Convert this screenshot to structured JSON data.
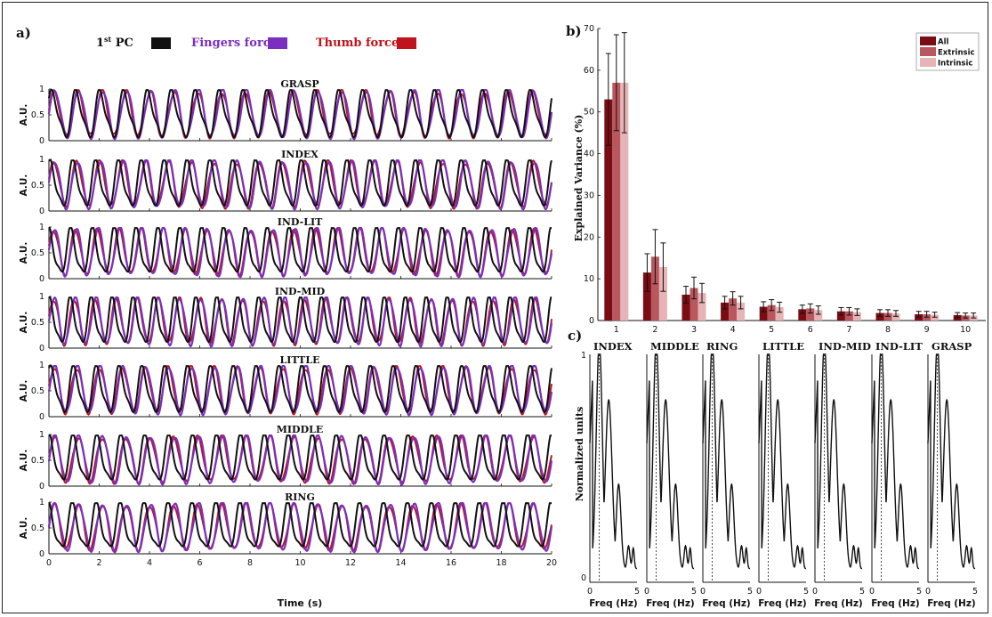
{
  "panel_a": {
    "letter": "a)",
    "legend": [
      {
        "label": "1st PC",
        "label_main": "1",
        "label_sup": "st",
        "label_rest": " PC",
        "color": "#111111"
      },
      {
        "label": "Fingers force",
        "color": "#7b2fbe"
      },
      {
        "label": "Thumb force",
        "color": "#c0141c"
      }
    ],
    "ylabel": "A.U.",
    "xlabel": "Time  (s)",
    "xticks": [
      "0",
      "2",
      "4",
      "6",
      "8",
      "10",
      "12",
      "14",
      "16",
      "18",
      "20"
    ],
    "yticks": [
      "0",
      "0.5",
      "1"
    ],
    "subplots": [
      {
        "title": "GRASP"
      },
      {
        "title": "INDEX"
      },
      {
        "title": "IND-LIT"
      },
      {
        "title": "IND-MID"
      },
      {
        "title": "LITTLE"
      },
      {
        "title": "MIDDLE"
      },
      {
        "title": "RING"
      }
    ]
  },
  "panel_b": {
    "letter": "b)",
    "ylabel": "Explained Variance (%)",
    "yticks": [
      "0",
      "10",
      "20",
      "30",
      "40",
      "50",
      "60",
      "70"
    ],
    "legend": [
      "All",
      "Extrinsic",
      "Intrinsic"
    ]
  },
  "panel_c": {
    "letter": "c)",
    "ylabel": "Normalized units",
    "xlabel": "Freq (Hz)",
    "xticks": [
      "0",
      "5"
    ],
    "yticks": [
      "0",
      "1"
    ],
    "titles": [
      "INDEX",
      "MIDDLE",
      "RING",
      "LITTLE",
      "IND-MID",
      "IND-LIT",
      "GRASP"
    ]
  },
  "chart_data": [
    {
      "type": "line",
      "panel": "a",
      "x_range": [
        0,
        20
      ],
      "ylim": [
        0,
        1
      ],
      "series": [
        {
          "name": "1st PC",
          "color": "#111111"
        },
        {
          "name": "Fingers force",
          "color": "#7b2fbe"
        },
        {
          "name": "Thumb force",
          "color": "#c0141c"
        }
      ],
      "subplot_params": [
        {
          "f": 1.05,
          "pc_phase": 0.6
        },
        {
          "f": 1.1,
          "pc_phase": 1.1
        },
        {
          "f": 1.15,
          "pc_phase": 1.5
        },
        {
          "f": 1.2,
          "pc_phase": 1.3
        },
        {
          "f": 1.1,
          "pc_phase": 0.9
        },
        {
          "f": 1.05,
          "pc_phase": 1.4
        },
        {
          "f": 1.05,
          "pc_phase": 1.6
        }
      ]
    },
    {
      "type": "bar",
      "panel": "b",
      "categories": [
        "1",
        "2",
        "3",
        "4",
        "5",
        "6",
        "7",
        "8",
        "9",
        "10"
      ],
      "ylim": [
        0,
        70
      ],
      "series": [
        {
          "name": "All",
          "color": "#7a0d13",
          "values": [
            53,
            11.5,
            6.2,
            4.3,
            3.3,
            2.7,
            2.2,
            1.8,
            1.5,
            1.3
          ],
          "errors": [
            11,
            4.5,
            2.0,
            1.5,
            1.2,
            1.0,
            0.9,
            0.8,
            0.7,
            0.6
          ]
        },
        {
          "name": "Extrinsic",
          "color": "#b8585e",
          "values": [
            57,
            15.3,
            7.8,
            5.3,
            3.7,
            2.9,
            2.2,
            1.8,
            1.5,
            1.2
          ],
          "errors": [
            11.5,
            6.5,
            2.6,
            1.6,
            1.3,
            1.1,
            0.9,
            0.8,
            0.7,
            0.6
          ]
        },
        {
          "name": "Intrinsic",
          "color": "#e6b4b6",
          "values": [
            57,
            12.8,
            6.6,
            4.3,
            3.2,
            2.5,
            2.0,
            1.7,
            1.4,
            1.2
          ],
          "errors": [
            12,
            5.8,
            2.3,
            1.5,
            1.2,
            1.0,
            0.8,
            0.7,
            0.6,
            0.6
          ]
        }
      ]
    },
    {
      "type": "line",
      "panel": "c",
      "x_range": [
        0,
        5
      ],
      "ylim": [
        0,
        1
      ],
      "peak_freq": 1.0,
      "series": [
        {
          "name": "spectrum",
          "color": "#111111"
        }
      ]
    }
  ]
}
